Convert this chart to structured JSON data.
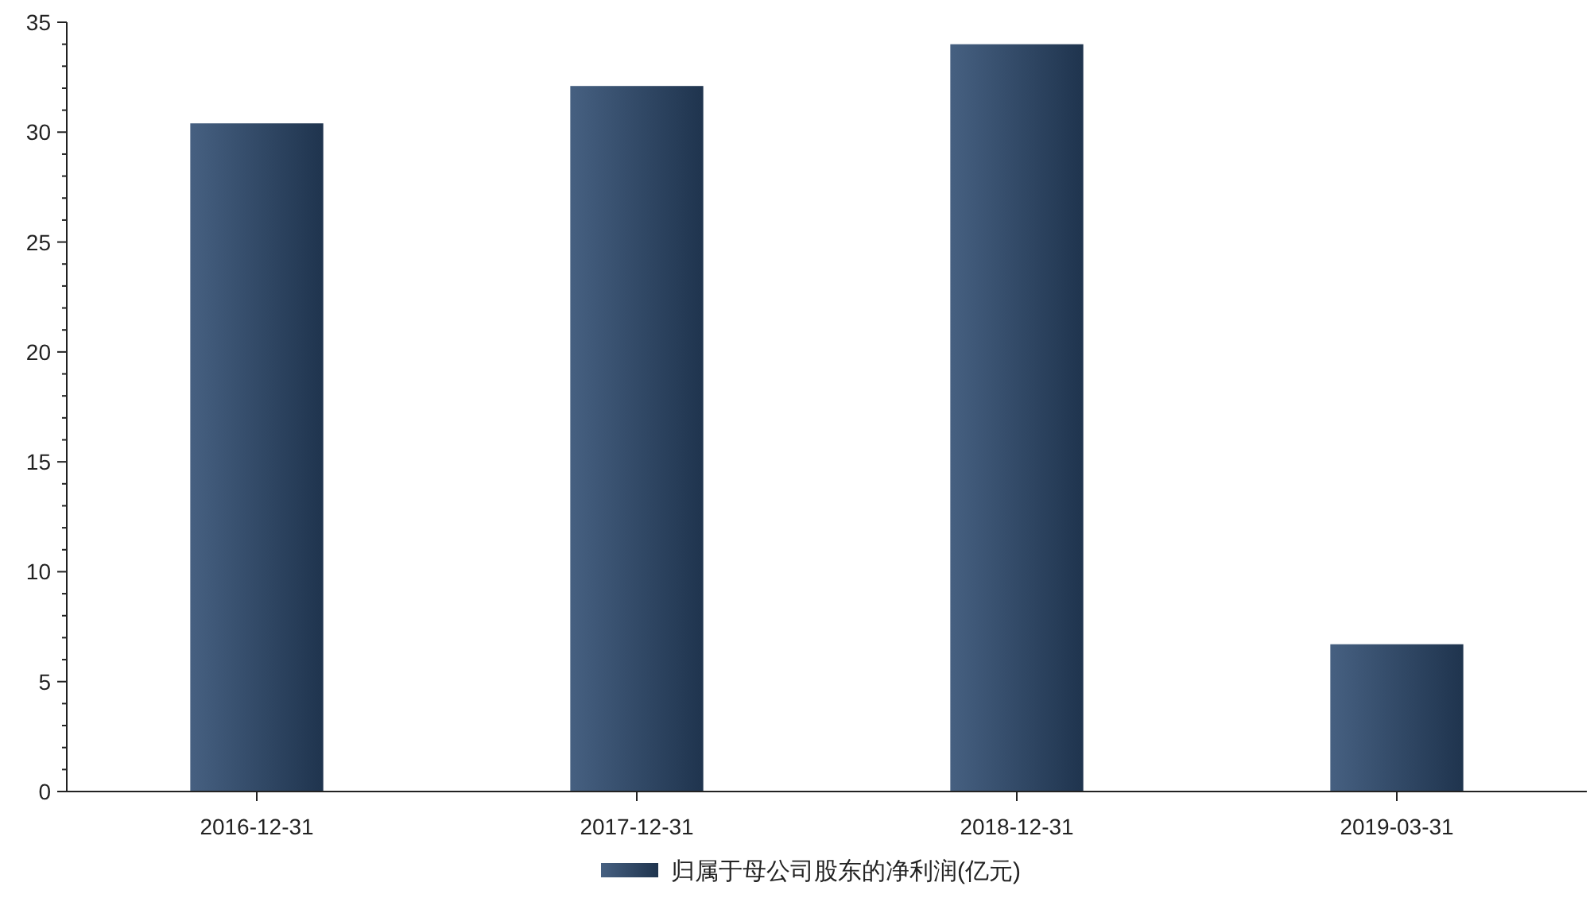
{
  "chart_data": {
    "type": "bar",
    "categories": [
      "2016-12-31",
      "2017-12-31",
      "2018-12-31",
      "2019-03-31"
    ],
    "series": [
      {
        "name": "归属于母公司股东的净利润(亿元)",
        "color": "#2d4a70",
        "values": [
          30.4,
          32.1,
          34.0,
          6.7
        ]
      }
    ],
    "ylim": [
      0,
      35
    ],
    "yticks": [
      0,
      5,
      10,
      15,
      20,
      25,
      30,
      35
    ],
    "grid": false,
    "legend": "bottom"
  }
}
